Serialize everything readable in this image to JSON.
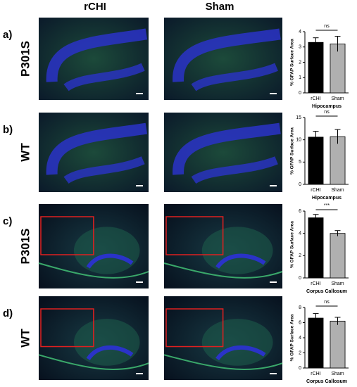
{
  "column_headers": [
    "rCHI",
    "Sham"
  ],
  "panels": [
    {
      "label": "a)",
      "row_label": "P301S"
    },
    {
      "label": "b)",
      "row_label": "WT"
    },
    {
      "label": "c)",
      "row_label": "P301S"
    },
    {
      "label": "d)",
      "row_label": "WT"
    }
  ],
  "chart_data": [
    {
      "type": "bar",
      "categories": [
        "rCHI",
        "Sham"
      ],
      "values": [
        3.3,
        3.2
      ],
      "errors": [
        0.3,
        0.5
      ],
      "colors": [
        "#000000",
        "#b0b0b0"
      ],
      "ylabel": "% GFAP Surface Area",
      "xlabel": "Hipocampus",
      "ylim": [
        0,
        4
      ],
      "yticks": [
        0,
        1,
        2,
        3,
        4
      ],
      "annotation": "ns"
    },
    {
      "type": "bar",
      "categories": [
        "rCHI",
        "Sham"
      ],
      "values": [
        10.6,
        10.7
      ],
      "errors": [
        1.3,
        1.6
      ],
      "colors": [
        "#000000",
        "#b0b0b0"
      ],
      "ylabel": "% GFAP Surface Area",
      "xlabel": "Hipocampus",
      "ylim": [
        0,
        15
      ],
      "yticks": [
        0,
        5,
        10,
        15
      ],
      "annotation": "ns"
    },
    {
      "type": "bar",
      "categories": [
        "rCHI",
        "Sham"
      ],
      "values": [
        5.4,
        4.0
      ],
      "errors": [
        0.3,
        0.25
      ],
      "colors": [
        "#000000",
        "#b0b0b0"
      ],
      "ylabel": "% GFAP Surface Area",
      "xlabel": "Corpus Callosum",
      "ylim": [
        0,
        6
      ],
      "yticks": [
        0,
        2,
        4,
        6
      ],
      "annotation": "***"
    },
    {
      "type": "bar",
      "categories": [
        "rCHI",
        "Sham"
      ],
      "values": [
        6.6,
        6.2
      ],
      "errors": [
        0.6,
        0.5
      ],
      "colors": [
        "#000000",
        "#b0b0b0"
      ],
      "ylabel": "% GFAP Surface Area",
      "xlabel": "Corpus Callosum",
      "ylim": [
        0,
        8
      ],
      "yticks": [
        0,
        2,
        4,
        6,
        8
      ],
      "annotation": "ns"
    }
  ]
}
